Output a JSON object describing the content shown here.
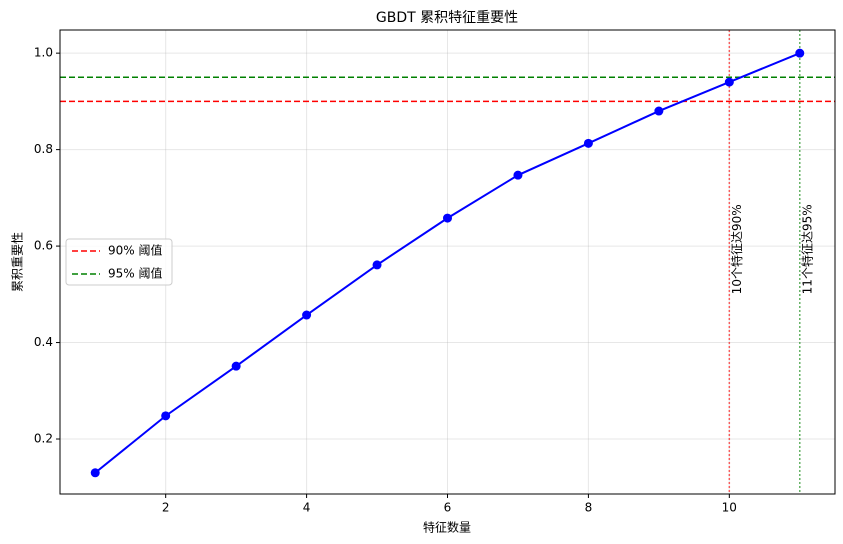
{
  "chart_data": {
    "type": "line",
    "title": "GBDT 累积特征重要性",
    "x_label": "特征数量",
    "y_label": "累积重要性",
    "x": [
      1,
      2,
      3,
      4,
      5,
      6,
      7,
      8,
      9,
      10,
      11
    ],
    "series": [
      {
        "color": "#0000ff",
        "values": [
          0.13,
          0.248,
          0.351,
          0.457,
          0.561,
          0.658,
          0.747,
          0.813,
          0.88,
          0.94,
          1.0
        ]
      }
    ],
    "xlim": [
      0.5,
      11.5
    ],
    "ylim": [
      0.086,
      1.048
    ],
    "xticks": [
      2,
      4,
      6,
      8,
      10
    ],
    "yticks": [
      0.2,
      0.4,
      0.6,
      0.8,
      {
        "value": 1,
        "label": "1.0"
      }
    ],
    "grid": true,
    "legend": "center left",
    "hlines": [
      {
        "value": 0.9,
        "label": "90% 阈值",
        "color": "#ff0000"
      },
      {
        "value": 0.95,
        "label": "95% 阈值",
        "color": "#008000"
      }
    ],
    "vlines": [
      {
        "value": 10,
        "color": "#ff0000",
        "annotation": "10个特征达90%"
      },
      {
        "value": 11,
        "color": "#008000",
        "annotation": "11个特征达95%"
      }
    ]
  }
}
